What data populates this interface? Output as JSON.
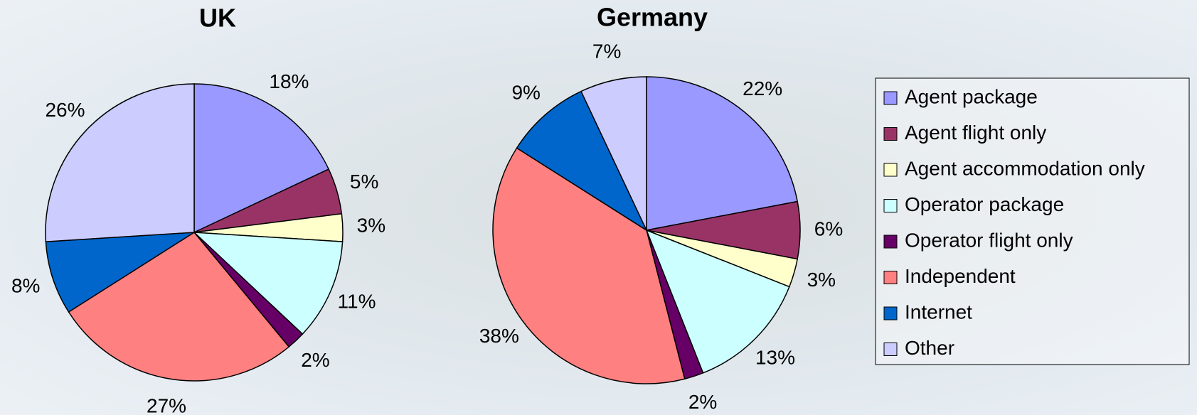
{
  "chart_data": [
    {
      "type": "pie",
      "title": "UK",
      "categories": [
        "Agent package",
        "Agent flight only",
        "Agent accommodation only",
        "Operator package",
        "Operator flight only",
        "Independent",
        "Internet",
        "Other"
      ],
      "colors": [
        "#9999ff",
        "#993366",
        "#ffffcc",
        "#ccffff",
        "#660066",
        "#ff8080",
        "#0066cc",
        "#ccccff"
      ],
      "values": [
        18,
        5,
        3,
        11,
        2,
        27,
        8,
        26
      ],
      "value_labels": [
        "18%",
        "5%",
        "3%",
        "11%",
        "2%",
        "27%",
        "8%",
        "26%"
      ]
    },
    {
      "type": "pie",
      "title": "Germany",
      "values": [
        22,
        6,
        3,
        13,
        2,
        38,
        9,
        7
      ],
      "value_labels": [
        "22%",
        "6%",
        "3%",
        "13%",
        "2%",
        "38%",
        "9%",
        "7%"
      ]
    }
  ]
}
